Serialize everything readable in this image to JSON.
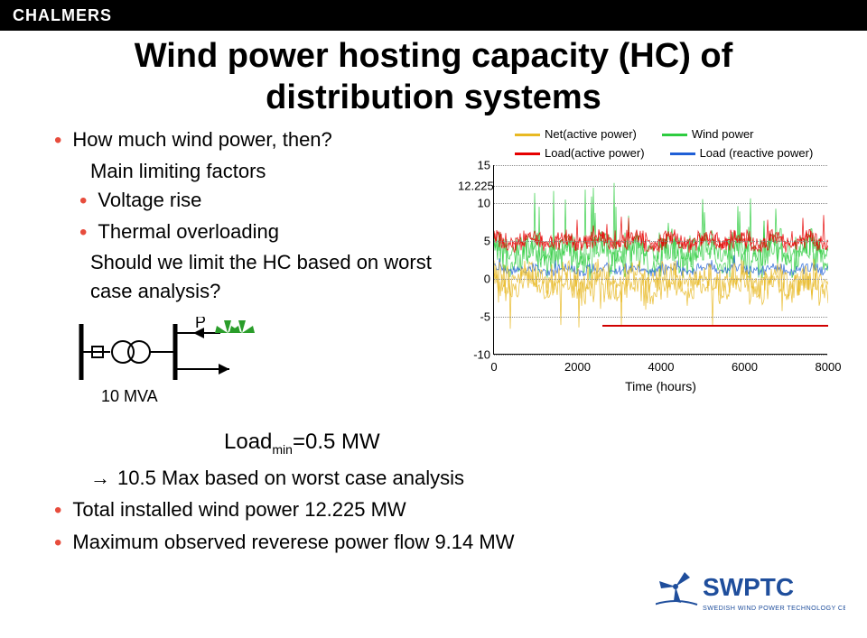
{
  "header": {
    "logo": "CHALMERS"
  },
  "title_line1": "Wind power hosting capacity (HC) of",
  "title_line2": "distribution systems",
  "left": {
    "q1": "How much wind power, then?",
    "subhead1": "Main limiting factors",
    "sub1a": "Voltage rise",
    "sub1b": "Thermal overloading",
    "subhead2a": "Should we limit the HC based on worst",
    "subhead2b": "case analysis?",
    "p_label": "P",
    "mva_label": "10 MVA",
    "load_label_prefix": "Load",
    "load_label_sub": "min",
    "load_label_suffix": "=0.5 MW"
  },
  "bottom": {
    "line1": "10.5 Max based on worst case analysis",
    "line2": "Total installed wind power 12.225 MW",
    "line3": "Maximum observed reverese power flow 9.14 MW"
  },
  "chart": {
    "type": "line",
    "legend": [
      {
        "label": "Net(active power)",
        "color": "#e8b923"
      },
      {
        "label": "Wind power",
        "color": "#2ecc40"
      },
      {
        "label": "Load(active power)",
        "color": "#e60000"
      },
      {
        "label": "Load (reactive power)",
        "color": "#1f5fd6"
      }
    ],
    "yticks": [
      {
        "v": 15,
        "label": "15"
      },
      {
        "v": 12.225,
        "label": "12.225"
      },
      {
        "v": 10,
        "label": "10"
      },
      {
        "v": 5,
        "label": "5"
      },
      {
        "v": 0,
        "label": "0"
      },
      {
        "v": -5,
        "label": "-5"
      },
      {
        "v": -10,
        "label": "-10"
      }
    ],
    "xticks": [
      {
        "v": 0,
        "label": "0"
      },
      {
        "v": 2000,
        "label": "2000"
      },
      {
        "v": 4000,
        "label": "4000"
      },
      {
        "v": 6000,
        "label": "6000"
      },
      {
        "v": 8000,
        "label": "8000"
      }
    ],
    "xaxis_label": "Time (hours)",
    "ylim": [
      -10,
      15
    ],
    "xlim": [
      0,
      8000
    ],
    "series_colors": {
      "net": "#e8b923",
      "wind": "#2ecc40",
      "load_active": "#e60000",
      "load_reactive": "#1f5fd6"
    },
    "red_bar_y": -6,
    "background": "#ffffff",
    "grid_color": "#888888"
  },
  "footer": {
    "swptc_label": "SWPTC",
    "swptc_sub": "SWEDISH WIND POWER TECHNOLOGY CENTRE"
  }
}
